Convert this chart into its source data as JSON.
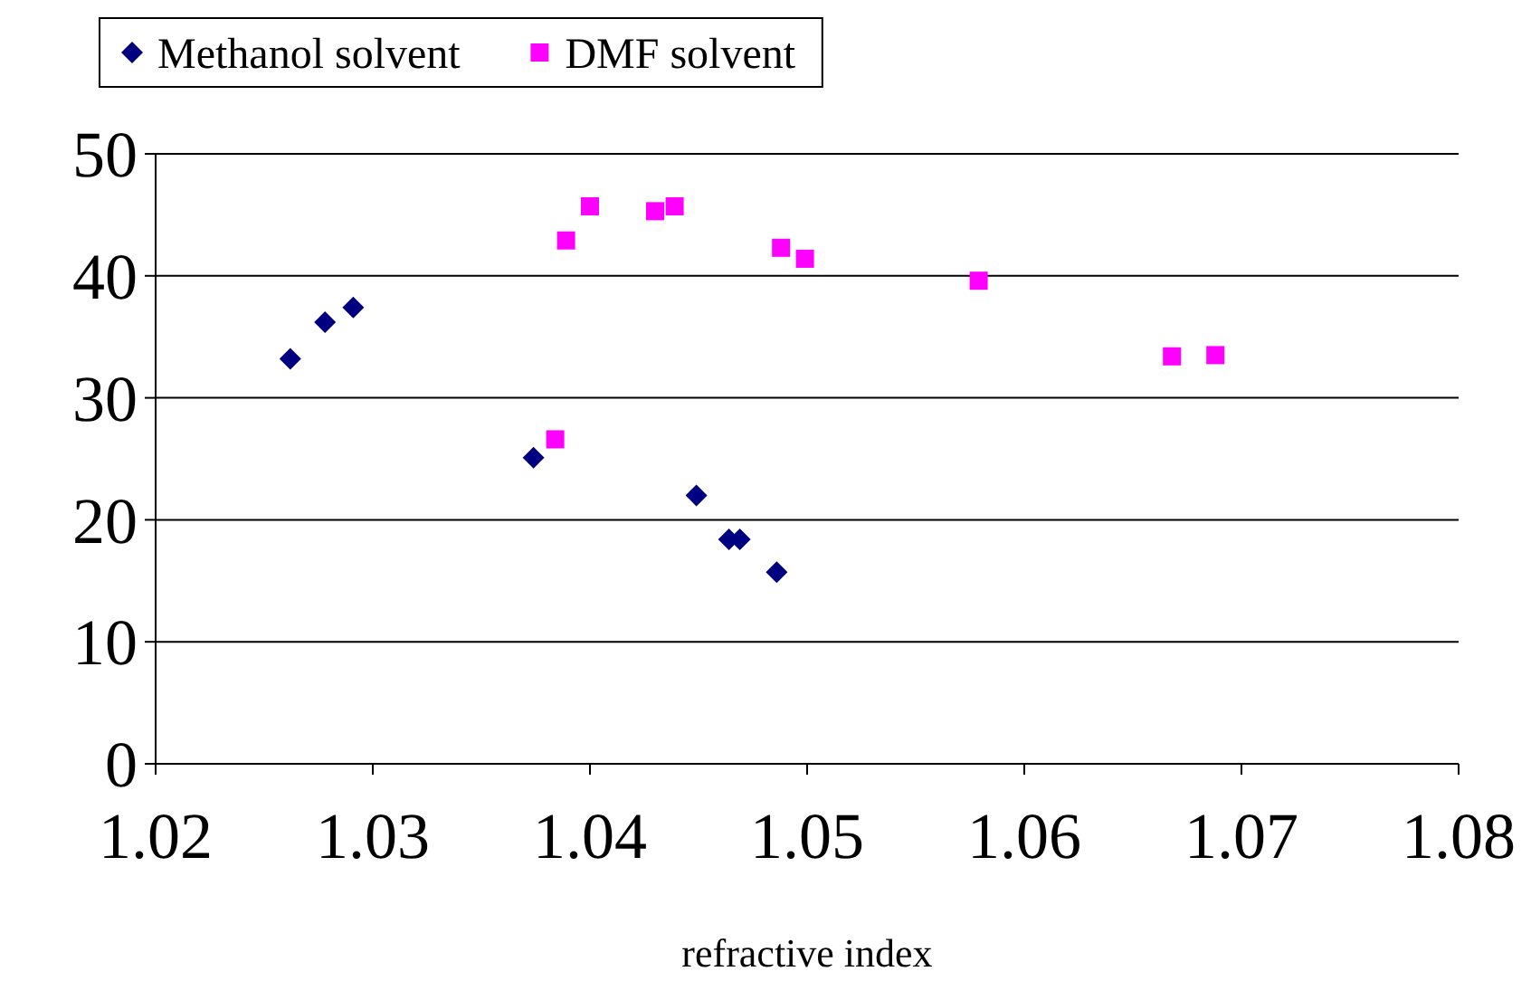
{
  "chart_data": {
    "type": "scatter",
    "xlabel": "refractive index",
    "xlim": [
      1.02,
      1.08
    ],
    "xticks": [
      {
        "value": 1.02,
        "label": "1.02"
      },
      {
        "value": 1.03,
        "label": "1.03"
      },
      {
        "value": 1.04,
        "label": "1.04"
      },
      {
        "value": 1.05,
        "label": "1.05"
      },
      {
        "value": 1.06,
        "label": "1.06"
      },
      {
        "value": 1.07,
        "label": "1.07"
      },
      {
        "value": 1.08,
        "label": "1.08"
      }
    ],
    "ylim": [
      0,
      50
    ],
    "yticks": [
      0,
      10,
      20,
      30,
      40,
      50
    ],
    "grid": "y",
    "legend": "top left",
    "series": [
      {
        "name": "Methanol solvent",
        "color": "#000080",
        "marker": "diamond",
        "x": [
          1.0262,
          1.0278,
          1.0291,
          1.0374,
          1.0449,
          1.0464,
          1.0469,
          1.0486
        ],
        "values": [
          33.2,
          36.2,
          37.4,
          25.1,
          22.0,
          18.4,
          18.4,
          15.7
        ]
      },
      {
        "name": "DMF solvent",
        "color": "#ff00ff",
        "marker": "square",
        "x": [
          1.0384,
          1.0389,
          1.04,
          1.043,
          1.0439,
          1.0488,
          1.0499,
          1.0579,
          1.0668,
          1.0688
        ],
        "values": [
          26.6,
          42.9,
          45.7,
          45.3,
          45.7,
          42.3,
          41.4,
          39.6,
          33.4,
          33.5
        ]
      }
    ]
  }
}
